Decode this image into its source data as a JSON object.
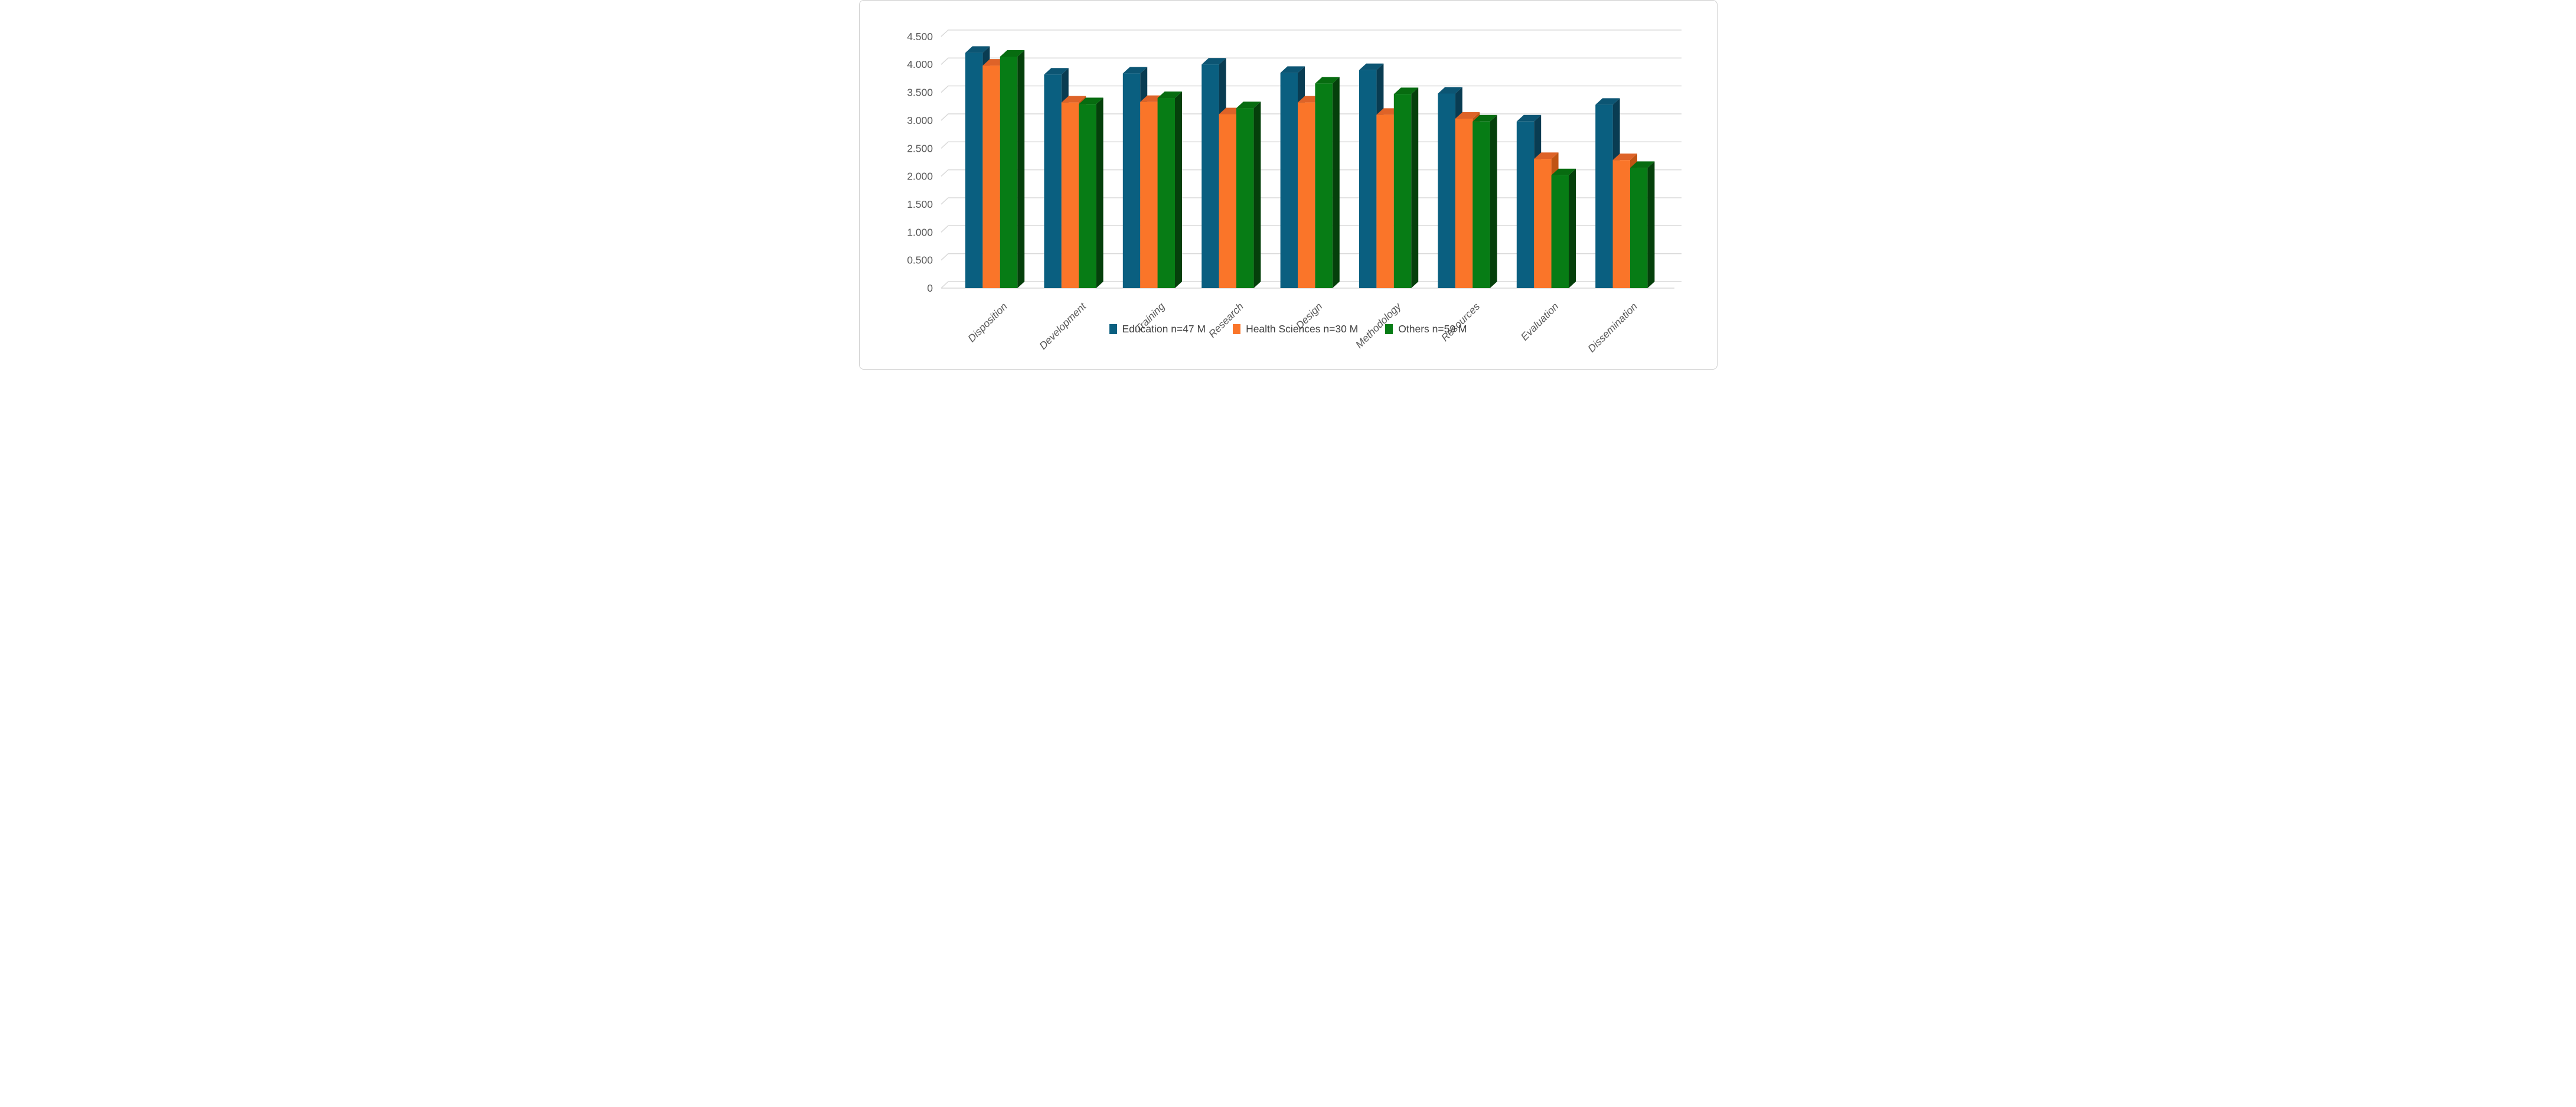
{
  "figure": {
    "background": "#FFFFFF",
    "border_color": "#CFCFCF"
  },
  "chart_data": {
    "type": "bar",
    "style": "3d-clustered-column",
    "title": "",
    "xlabel": "",
    "ylabel": "",
    "categories": [
      "Disposition",
      "Development",
      "Training",
      "Research",
      "Design",
      "Methodology",
      "Resources",
      "Evaluation",
      "Dissemination"
    ],
    "series": [
      {
        "name": "Education n=47 M",
        "color": "#0A5F80",
        "color_top": "#0C5573",
        "color_side": "#093C52",
        "values": [
          4.21,
          3.82,
          3.84,
          4.0,
          3.85,
          3.9,
          3.48,
          2.98,
          3.28
        ]
      },
      {
        "name": "Health Sciences n=30 M",
        "color": "#FA7529",
        "color_top": "#DE6328",
        "color_side": "#C05413",
        "values": [
          3.98,
          3.32,
          3.33,
          3.11,
          3.32,
          3.1,
          3.03,
          2.31,
          2.29
        ]
      },
      {
        "name": "Others n=59 M",
        "color": "#077C15",
        "color_top": "#076C10",
        "color_side": "#05400B",
        "values": [
          4.14,
          3.29,
          3.4,
          3.22,
          3.66,
          3.47,
          2.98,
          2.02,
          2.15
        ]
      }
    ],
    "y_axis": {
      "min": 0,
      "max": 4.5,
      "step": 0.5,
      "ticks": [
        "0",
        "0.500",
        "1.000",
        "1.500",
        "2.000",
        "2.500",
        "3.000",
        "3.500",
        "4.000",
        "4.500"
      ],
      "label_color": "#595959"
    },
    "x_axis": {
      "label_color": "#595959",
      "labels_rotated_degrees": 45,
      "labels_italic": true
    },
    "gridline_color": "#D9D9D9",
    "grid": true,
    "legend": {
      "position": "bottom",
      "text_color": "#404040"
    }
  }
}
